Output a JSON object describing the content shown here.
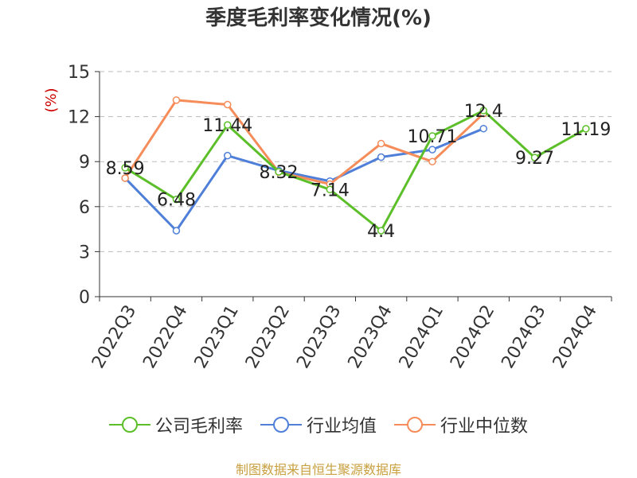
{
  "title": "季度毛利率变化情况(%)",
  "ylabel": "(%)",
  "source": "制图数据来自恒生聚源数据库",
  "colors": {
    "company": "#5cbf2a",
    "industry_avg": "#4f7fd8",
    "industry_median": "#f58c5a",
    "ylabel": "#cc0000",
    "source": "#c8a040"
  },
  "chart_data": {
    "type": "line",
    "title": "季度毛利率变化情况(%)",
    "ylabel": "(%)",
    "xlabel": "",
    "ylim": [
      0,
      15
    ],
    "yticks": [
      0,
      3,
      6,
      9,
      12,
      15
    ],
    "grid": true,
    "legend_position": "bottom",
    "categories": [
      "2022Q3",
      "2022Q4",
      "2023Q1",
      "2023Q2",
      "2023Q3",
      "2023Q4",
      "2024Q1",
      "2024Q2",
      "2024Q3",
      "2024Q4"
    ],
    "series": [
      {
        "name": "公司毛利率",
        "color": "#5cbf2a",
        "values": [
          8.59,
          6.48,
          11.44,
          8.32,
          7.14,
          4.4,
          10.71,
          12.4,
          9.27,
          11.19
        ],
        "labels": [
          "8.59",
          "6.48",
          "11.44",
          "8.32",
          "7.14",
          "4.4",
          "10.71",
          "12.4",
          "9.27",
          "11.19"
        ]
      },
      {
        "name": "行业均值",
        "color": "#4f7fd8",
        "values": [
          7.9,
          4.4,
          9.4,
          8.4,
          7.7,
          9.3,
          9.8,
          11.2,
          null,
          null
        ]
      },
      {
        "name": "行业中位数",
        "color": "#f58c5a",
        "values": [
          7.9,
          13.1,
          12.8,
          8.3,
          7.5,
          10.2,
          9.0,
          12.2,
          null,
          null
        ]
      }
    ]
  }
}
